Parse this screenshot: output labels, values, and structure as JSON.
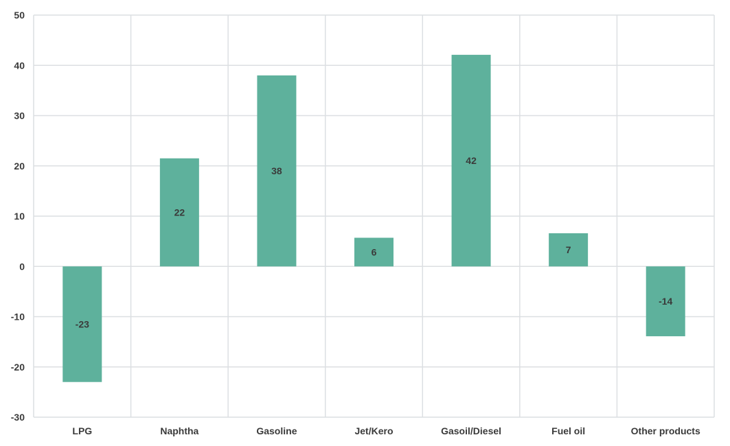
{
  "chart_data": {
    "type": "bar",
    "categories": [
      "LPG",
      "Naphtha",
      "Gasoline",
      "Jet/Kero",
      "Gasoil/Diesel",
      "Fuel oil",
      "Other products"
    ],
    "values": [
      -23,
      21.5,
      38,
      5.7,
      42.1,
      6.6,
      -13.9
    ],
    "data_labels": [
      "-23",
      "22",
      "38",
      "6",
      "42",
      "7",
      "-14"
    ],
    "ylim": [
      -30,
      50
    ],
    "yticks": [
      50,
      40,
      30,
      20,
      10,
      0,
      -10,
      -20,
      -30
    ],
    "title": "",
    "xlabel": "",
    "ylabel": "",
    "grid": true,
    "legend": "none",
    "bar_color": "#5eb19c",
    "grid_color": "#dcdfe2",
    "text_color": "#3a3a3a"
  }
}
